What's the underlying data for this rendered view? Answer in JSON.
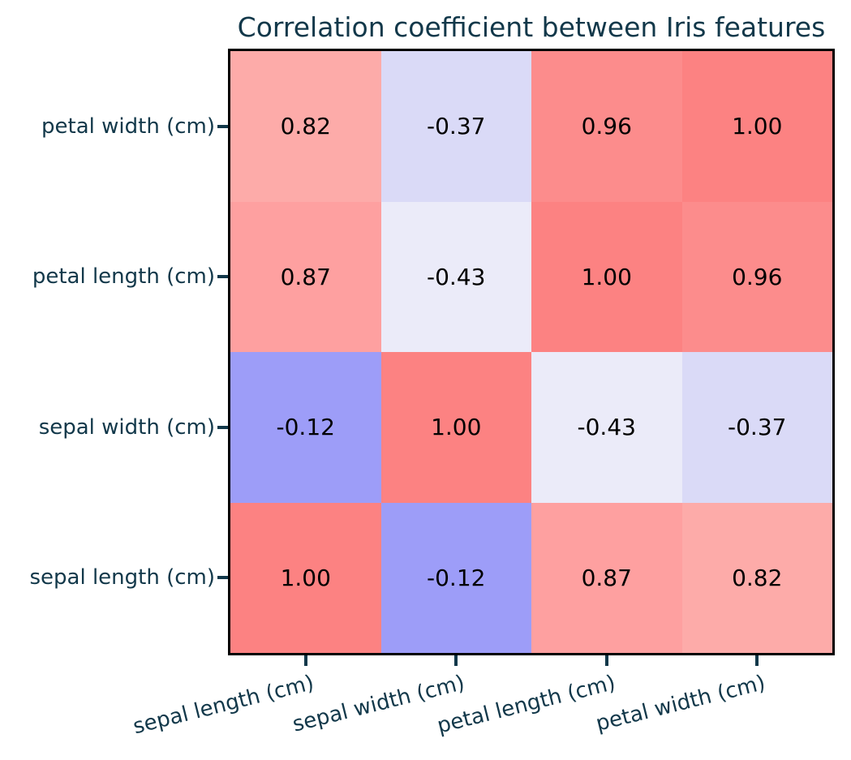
{
  "title": "Correlation coefficient between Iris features",
  "chart_data": {
    "type": "heatmap",
    "title": "Correlation coefficient between Iris features",
    "x_tick_labels": [
      "sepal length (cm)",
      "sepal width (cm)",
      "petal length (cm)",
      "petal width (cm)"
    ],
    "y_tick_labels_top_to_bottom": [
      "petal width (cm)",
      "petal length (cm)",
      "sepal width (cm)",
      "sepal length (cm)"
    ],
    "cell_text_rows_top_to_bottom": [
      [
        "0.82",
        "-0.37",
        "0.96",
        "1.00"
      ],
      [
        "0.87",
        "-0.43",
        "1.00",
        "0.96"
      ],
      [
        "-0.12",
        "1.00",
        "-0.43",
        "-0.37"
      ],
      [
        "1.00",
        "-0.12",
        "0.87",
        "0.82"
      ]
    ],
    "values_rows_top_to_bottom": [
      [
        0.82,
        -0.37,
        0.96,
        1.0
      ],
      [
        0.87,
        -0.43,
        1.0,
        0.96
      ],
      [
        -0.12,
        1.0,
        -0.43,
        -0.37
      ],
      [
        1.0,
        -0.12,
        0.87,
        0.82
      ]
    ],
    "cell_colors_by_value": {
      "1.00": "#fc8282",
      "0.96": "#fc8c8c",
      "0.87": "#fea0a0",
      "0.82": "#fdaba9",
      "-0.12": "#9d9df8",
      "-0.37": "#dadaf7",
      "-0.43": "#ebebf9"
    },
    "legend": "none",
    "grid": "off",
    "colorbar": "none"
  },
  "colors": {
    "axis_text": "#12384a",
    "tick_mark": "#12384a",
    "cell_text": "#000000",
    "axes_border": "#000000",
    "background": "#ffffff"
  }
}
